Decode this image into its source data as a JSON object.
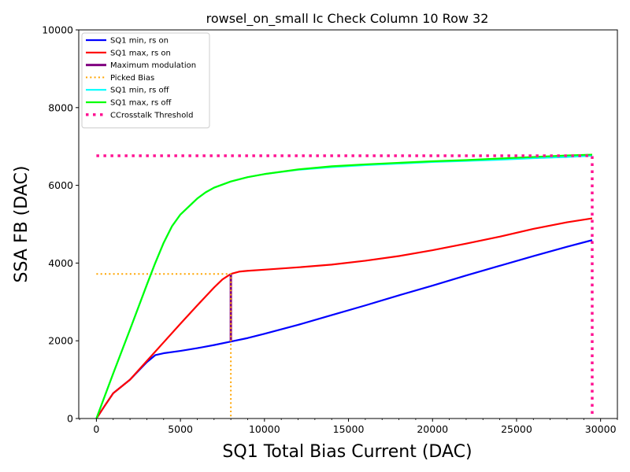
{
  "chart_data": {
    "type": "line",
    "title": "rowsel_on_small Ic Check Column 10 Row 32",
    "xlabel": "SQ1 Total Bias Current (DAC)",
    "ylabel": "SSA FB (DAC)",
    "xlim": [
      -1050,
      31000
    ],
    "ylim": [
      0,
      10000
    ],
    "x_ticks": [
      0,
      5000,
      10000,
      15000,
      20000,
      25000,
      30000
    ],
    "x_tick_labels": [
      "0",
      "5000",
      "10000",
      "15000",
      "20000",
      "25000",
      "30000"
    ],
    "y_ticks": [
      0,
      2000,
      4000,
      6000,
      8000,
      10000
    ],
    "y_tick_labels": [
      "0",
      "2000",
      "4000",
      "6000",
      "8000",
      "10000"
    ],
    "legend_position": "upper-left",
    "series": [
      {
        "name": "SQ1 min, rs on",
        "color": "#0000ff",
        "style": "solid",
        "x": [
          0,
          500,
          1000,
          2000,
          3000,
          3500,
          4000,
          5000,
          6000,
          7000,
          8000,
          9000,
          10000,
          12000,
          14000,
          16000,
          18000,
          20000,
          22000,
          24000,
          26000,
          28000,
          29500
        ],
        "y": [
          0,
          330,
          650,
          1000,
          1450,
          1630,
          1680,
          1740,
          1810,
          1890,
          1980,
          2070,
          2180,
          2410,
          2660,
          2910,
          3170,
          3420,
          3680,
          3930,
          4180,
          4420,
          4590
        ]
      },
      {
        "name": "SQ1 max, rs on",
        "color": "#ff0000",
        "style": "solid",
        "x": [
          0,
          500,
          1000,
          2000,
          3000,
          4000,
          5000,
          6000,
          7000,
          7500,
          8000,
          8500,
          9000,
          10000,
          12000,
          14000,
          16000,
          18000,
          20000,
          22000,
          24000,
          26000,
          28000,
          29500
        ],
        "y": [
          0,
          330,
          650,
          1000,
          1480,
          1960,
          2440,
          2910,
          3370,
          3580,
          3720,
          3780,
          3800,
          3830,
          3890,
          3960,
          4060,
          4180,
          4330,
          4500,
          4680,
          4880,
          5050,
          5150
        ]
      },
      {
        "name": "Maximum modulation",
        "color": "#800080",
        "style": "solid",
        "x": [
          8000,
          8000
        ],
        "y": [
          1980,
          3720
        ]
      },
      {
        "name": "Picked Bias",
        "color": "#ffa500",
        "style": "dotted",
        "x": [
          0,
          8000,
          8000
        ],
        "y": [
          3720,
          3720,
          0
        ]
      },
      {
        "name": "SQ1 min, rs off",
        "color": "#00ffff",
        "style": "solid",
        "x": [
          0,
          1000,
          2000,
          3000,
          3500,
          4000,
          4500,
          5000,
          6000,
          6500,
          7000,
          8000,
          9000,
          10000,
          12000,
          14000,
          16000,
          18000,
          20000,
          22000,
          24000,
          26000,
          28000,
          29500
        ],
        "y": [
          0,
          1160,
          2290,
          3440,
          4000,
          4520,
          4950,
          5250,
          5660,
          5820,
          5940,
          6100,
          6210,
          6290,
          6400,
          6470,
          6520,
          6560,
          6600,
          6630,
          6660,
          6700,
          6730,
          6760
        ]
      },
      {
        "name": "SQ1 max, rs off",
        "color": "#00ff00",
        "style": "solid",
        "x": [
          0,
          1000,
          2000,
          3000,
          3500,
          4000,
          4500,
          5000,
          6000,
          6500,
          7000,
          8000,
          9000,
          10000,
          12000,
          14000,
          16000,
          18000,
          20000,
          22000,
          24000,
          26000,
          28000,
          29500
        ],
        "y": [
          0,
          1160,
          2290,
          3440,
          4000,
          4520,
          4950,
          5250,
          5660,
          5820,
          5940,
          6100,
          6210,
          6290,
          6410,
          6490,
          6540,
          6580,
          6620,
          6650,
          6690,
          6730,
          6770,
          6790
        ]
      },
      {
        "name": "CCrosstalk Threshold",
        "color": "#ff1493",
        "style": "dotted",
        "x": [
          0,
          29500,
          29500
        ],
        "y": [
          6760,
          6760,
          0
        ]
      }
    ]
  }
}
